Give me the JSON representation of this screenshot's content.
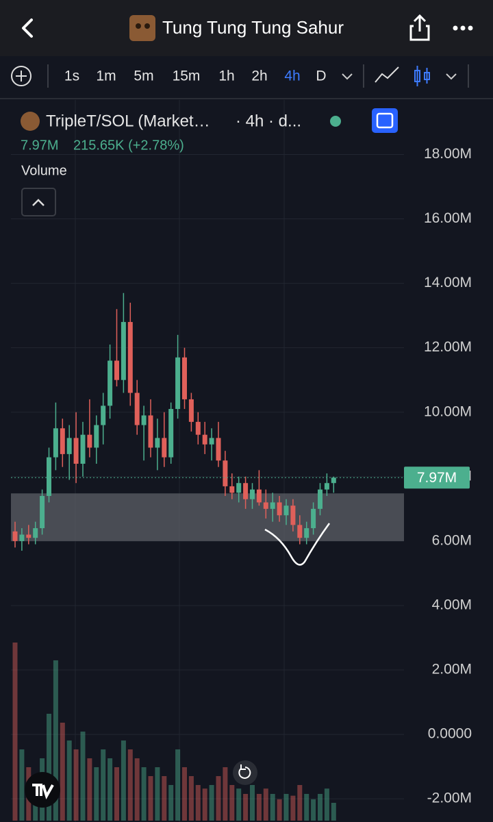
{
  "header": {
    "title": "Tung Tung Tung Sahur"
  },
  "toolbar": {
    "intervals": [
      "1s",
      "1m",
      "5m",
      "15m",
      "1h",
      "2h",
      "4h",
      "D"
    ],
    "active": "4h"
  },
  "legend": {
    "symbol": "TripleT/SOL (Market…",
    "interval": "· 4h · d...",
    "price": "7.97M",
    "change": "215.65K (+2.78%)",
    "study": "Volume"
  },
  "chart_data": {
    "type": "candlestick",
    "ylim": [
      -2.72,
      19.69
    ],
    "yticks": [
      {
        "value": -2,
        "label": "-2.00M"
      },
      {
        "value": 0,
        "label": "0.0000"
      },
      {
        "value": 2,
        "label": "2.00M"
      },
      {
        "value": 4,
        "label": "4.00M"
      },
      {
        "value": 6,
        "label": "6.00M"
      },
      {
        "value": 8,
        "label": "8.00M"
      },
      {
        "value": 10,
        "label": "10.00M"
      },
      {
        "value": 12,
        "label": "12.00M"
      },
      {
        "value": 14,
        "label": "14.00M"
      },
      {
        "value": 16,
        "label": "16.00M"
      },
      {
        "value": 18,
        "label": "18.00M"
      }
    ],
    "up_color": "#4caf8e",
    "down_color": "#e0605a",
    "candles": {
      "open": [
        6.3,
        6.0,
        6.2,
        6.1,
        6.4,
        7.4,
        8.6,
        9.5,
        8.7,
        9.2,
        8.4,
        9.3,
        8.9,
        9.6,
        10.2,
        11.6,
        11.0,
        12.8,
        10.6,
        9.6,
        9.9,
        8.9,
        9.2,
        8.6,
        10.1,
        11.7,
        10.4,
        9.7,
        9.3,
        9.0,
        9.2,
        8.5,
        7.7,
        7.5,
        7.8,
        7.3,
        7.6,
        7.2,
        7.0,
        7.2,
        6.8,
        7.1,
        6.5,
        6.1,
        6.4,
        7.0,
        7.6,
        7.8
      ],
      "high": [
        6.6,
        6.4,
        6.5,
        6.6,
        7.6,
        8.9,
        10.3,
        9.8,
        9.6,
        10.0,
        9.7,
        10.4,
        9.9,
        10.6,
        12.1,
        13.2,
        13.7,
        13.4,
        11.0,
        10.2,
        10.4,
        9.8,
        10.0,
        10.3,
        12.4,
        12.0,
        10.6,
        10.0,
        9.7,
        9.5,
        9.7,
        8.8,
        8.1,
        8.0,
        8.0,
        7.8,
        8.2,
        7.6,
        7.5,
        7.4,
        7.3,
        7.3,
        6.8,
        6.6,
        7.2,
        7.8,
        8.1,
        8.0
      ],
      "low": [
        5.8,
        5.7,
        5.9,
        5.9,
        6.2,
        7.2,
        8.2,
        8.3,
        7.9,
        7.8,
        8.0,
        8.6,
        8.4,
        9.0,
        9.8,
        10.8,
        10.6,
        10.2,
        9.3,
        8.5,
        8.6,
        8.2,
        8.3,
        8.4,
        9.8,
        10.1,
        9.4,
        9.0,
        8.7,
        8.5,
        8.3,
        7.4,
        7.3,
        7.2,
        7.0,
        7.0,
        7.1,
        6.7,
        6.6,
        6.6,
        6.5,
        6.3,
        5.9,
        5.9,
        6.2,
        6.8,
        7.4,
        7.5
      ],
      "close": [
        6.0,
        6.2,
        6.1,
        6.4,
        7.4,
        8.6,
        9.5,
        8.7,
        9.2,
        8.4,
        9.3,
        8.9,
        9.6,
        10.2,
        11.6,
        11.0,
        12.8,
        10.6,
        9.6,
        9.9,
        8.9,
        9.2,
        8.6,
        10.1,
        11.7,
        10.4,
        9.7,
        9.3,
        9.0,
        9.2,
        8.5,
        7.7,
        7.5,
        7.8,
        7.3,
        7.6,
        7.2,
        7.0,
        7.2,
        6.8,
        7.1,
        6.5,
        6.1,
        6.4,
        7.0,
        7.6,
        7.8,
        7.97
      ]
    },
    "volume": [
      100,
      40,
      30,
      25,
      35,
      60,
      90,
      55,
      45,
      40,
      50,
      35,
      30,
      40,
      35,
      30,
      45,
      40,
      35,
      30,
      25,
      30,
      25,
      20,
      40,
      30,
      25,
      20,
      18,
      20,
      25,
      30,
      20,
      18,
      15,
      20,
      15,
      18,
      15,
      12,
      15,
      14,
      20,
      15,
      12,
      15,
      18,
      10
    ],
    "last_price": 7.97,
    "last_price_label": "7.97M",
    "zone": [
      6.0,
      7.48
    ],
    "zone_color": "#5c5f66"
  }
}
